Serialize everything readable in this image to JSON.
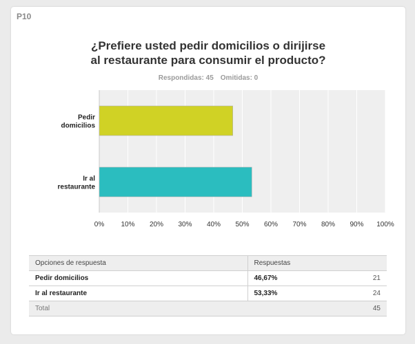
{
  "question_id": "P10",
  "title_line1": "¿Prefiere usted pedir domicilios o dirijirse",
  "title_line2": "al restaurante para consumir el producto?",
  "stats": {
    "answered": "Respondidas: 45",
    "skipped": "Omitidas: 0"
  },
  "chart_data": {
    "type": "bar",
    "orientation": "horizontal",
    "categories": [
      [
        "Pedir",
        "domicilios"
      ],
      [
        "Ir al",
        "restaurante"
      ]
    ],
    "values": [
      46.67,
      53.33
    ],
    "colors": [
      "#d0d225",
      "#2bbdbf"
    ],
    "xlim": [
      0,
      100
    ],
    "xticks": [
      "0%",
      "10%",
      "20%",
      "30%",
      "40%",
      "50%",
      "60%",
      "70%",
      "80%",
      "90%",
      "100%"
    ],
    "grid": true
  },
  "table": {
    "headers": [
      "Opciones de respuesta",
      "Respuestas"
    ],
    "rows": [
      {
        "option": "Pedir domicilios",
        "percent": "46,67%",
        "count": "21"
      },
      {
        "option": "Ir al restaurante",
        "percent": "53,33%",
        "count": "24"
      }
    ],
    "total_label": "Total",
    "total_count": "45"
  }
}
